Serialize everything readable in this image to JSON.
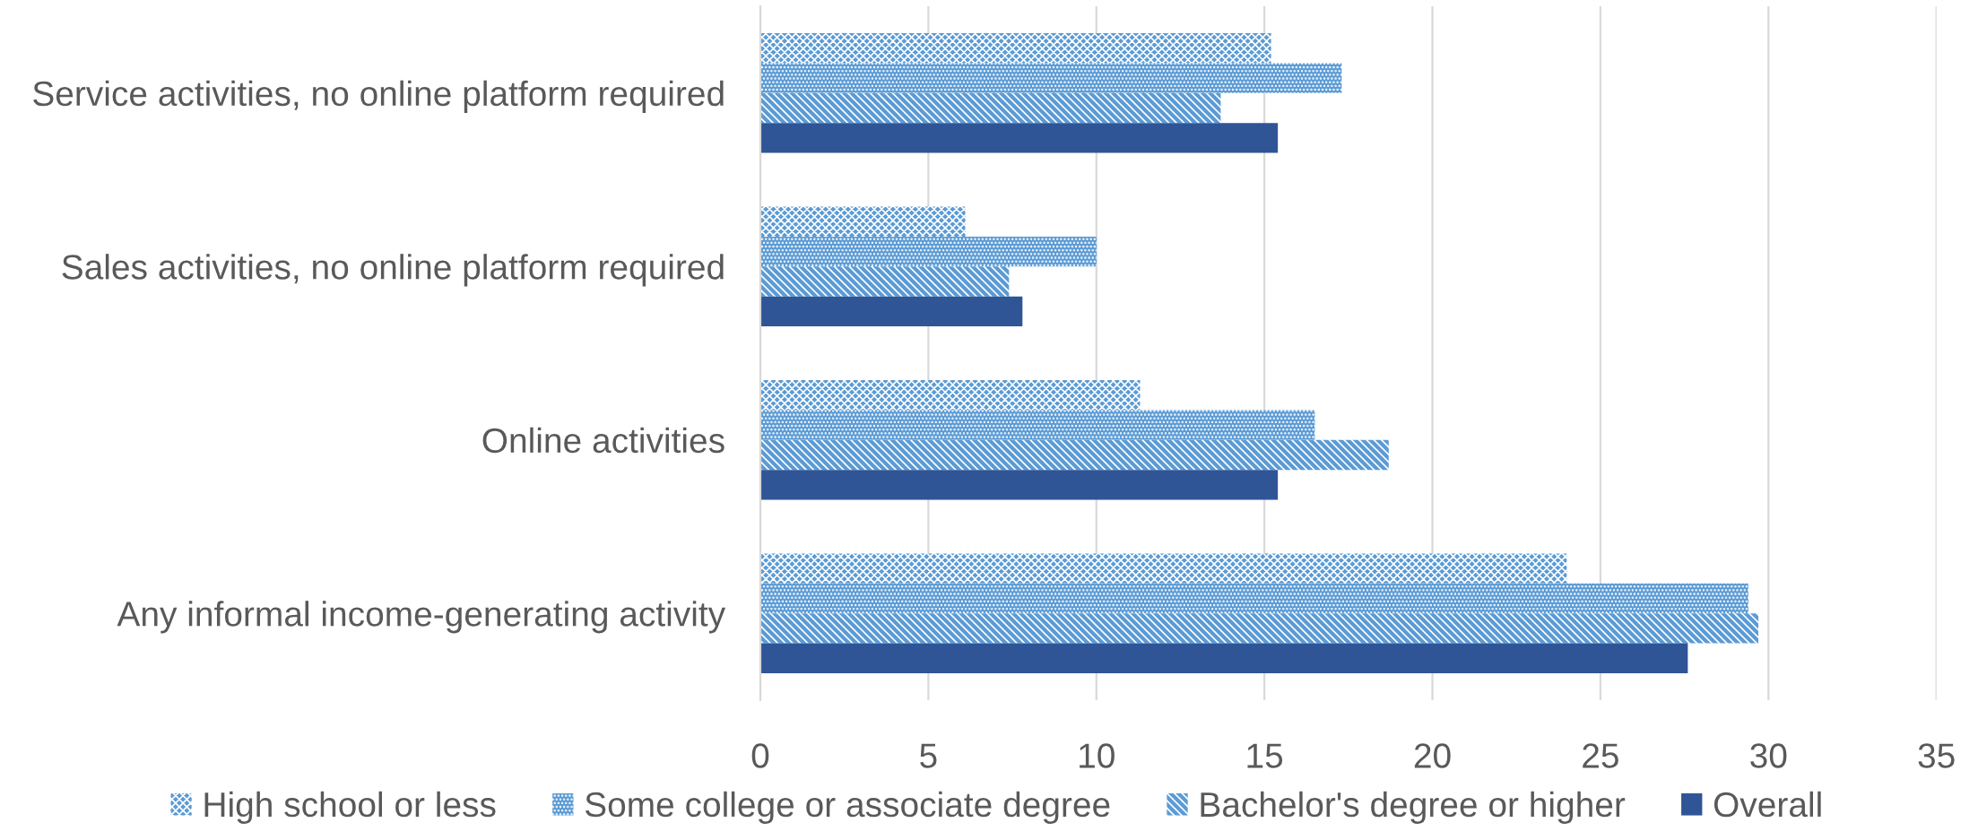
{
  "chart_data": {
    "type": "bar",
    "orientation": "horizontal",
    "categories": [
      "Service activities, no online platform required",
      "Sales activities, no online platform required",
      "Online activities",
      "Any informal income-generating activity"
    ],
    "series": [
      {
        "name": "High school or less",
        "color": "#5b9bd5",
        "values": [
          15.2,
          6.1,
          11.3,
          24.0
        ]
      },
      {
        "name": "Some college or associate degree",
        "color": "#5b9bd5",
        "values": [
          17.3,
          10.0,
          16.5,
          29.4
        ]
      },
      {
        "name": "Bachelor's degree or higher",
        "color": "#5b9bd5",
        "values": [
          13.7,
          7.4,
          18.7,
          29.7
        ]
      },
      {
        "name": "Overall",
        "color": "#2f5597",
        "values": [
          15.4,
          7.8,
          15.4,
          27.6
        ]
      }
    ],
    "xlim": [
      0,
      35
    ],
    "xticks": [
      0,
      5,
      10,
      15,
      20,
      25,
      30,
      35
    ],
    "grid": "x",
    "legend": "bottom"
  }
}
